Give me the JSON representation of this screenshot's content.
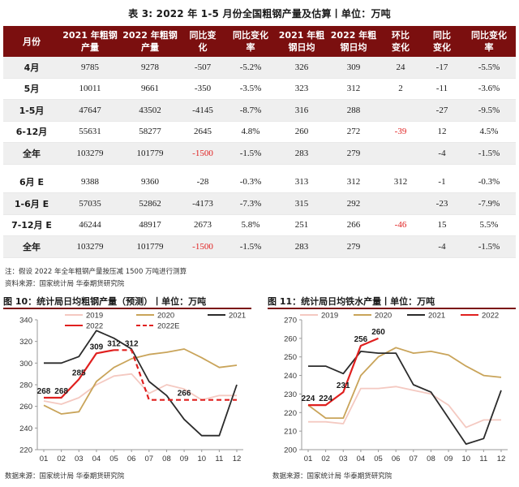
{
  "table": {
    "title": "表 3: 2022 年 1-5 月份全国粗钢产量及估算丨单位：万吨",
    "headers": [
      "月份",
      "2021 年粗钢\n产量",
      "2022 年粗钢\n产量",
      "同比变\n化",
      "同比变化\n率",
      "2021 年粗\n钢日均",
      "2022 年粗\n钢日均",
      "环比\n变化",
      "同比\n变化",
      "同比变化\n率"
    ],
    "rows": [
      {
        "cells": [
          "4月",
          "9785",
          "9278",
          "-507",
          "-5.2%",
          "326",
          "309",
          "24",
          "-17",
          "-5.5%"
        ],
        "shade": true,
        "red": []
      },
      {
        "cells": [
          "5月",
          "10011",
          "9661",
          "-350",
          "-3.5%",
          "323",
          "312",
          "2",
          "-11",
          "-3.6%"
        ],
        "shade": false,
        "red": []
      },
      {
        "cells": [
          "1-5月",
          "47647",
          "43502",
          "-4145",
          "-8.7%",
          "316",
          "288",
          "",
          "-27",
          "-9.5%"
        ],
        "shade": true,
        "red": []
      },
      {
        "cells": [
          "6-12月",
          "55631",
          "58277",
          "2645",
          "4.8%",
          "260",
          "272",
          "-39",
          "12",
          "4.5%"
        ],
        "shade": false,
        "red": [
          7
        ]
      },
      {
        "cells": [
          "全年",
          "103279",
          "101779",
          "-1500",
          "-1.5%",
          "283",
          "279",
          "",
          "-4",
          "-1.5%"
        ],
        "shade": true,
        "red": [
          3
        ]
      },
      {
        "cells": [
          "6月 E",
          "9388",
          "9360",
          "-28",
          "-0.3%",
          "313",
          "312",
          "312",
          "-1",
          "-0.3%"
        ],
        "shade": false,
        "red": [],
        "gap_before": true
      },
      {
        "cells": [
          "1-6月 E",
          "57035",
          "52862",
          "-4173",
          "-7.3%",
          "315",
          "292",
          "",
          "-23",
          "-7.9%"
        ],
        "shade": true,
        "red": []
      },
      {
        "cells": [
          "7-12月 E",
          "46244",
          "48917",
          "2673",
          "5.8%",
          "251",
          "266",
          "-46",
          "15",
          "5.5%"
        ],
        "shade": false,
        "red": [
          7
        ]
      },
      {
        "cells": [
          "全年",
          "103279",
          "101779",
          "-1500",
          "-1.5%",
          "283",
          "279",
          "",
          "-4",
          "-1.5%"
        ],
        "shade": true,
        "red": [
          3
        ]
      }
    ],
    "note": "注：假设 2022 年全年粗钢产量按压减 1500 万吨进行测算",
    "source": "资料来源：国家统计局  华泰期货研究院"
  },
  "chart_data": [
    {
      "type": "line",
      "title": "图 10：统计局日均粗钢产量（预测）丨单位：万吨",
      "source": "数据来源：国家统计局  华泰期货研究院",
      "x": [
        "01",
        "02",
        "03",
        "04",
        "05",
        "06",
        "07",
        "08",
        "09",
        "10",
        "11",
        "12"
      ],
      "ylim": [
        220,
        340
      ],
      "yticks": [
        220,
        240,
        260,
        280,
        300,
        320,
        340
      ],
      "legend_position": "top",
      "series": [
        {
          "name": "2019",
          "color": "#f4c9c1",
          "dash": false,
          "values": [
            265,
            262,
            268,
            280,
            288,
            290,
            272,
            280,
            276,
            266,
            270,
            270
          ]
        },
        {
          "name": "2020",
          "color": "#c9a45a",
          "dash": false,
          "values": [
            261,
            253,
            255,
            283,
            296,
            304,
            308,
            310,
            313,
            305,
            296,
            298
          ]
        },
        {
          "name": "2021",
          "color": "#2b2b2b",
          "dash": false,
          "values": [
            300,
            300,
            306,
            330,
            323,
            313,
            283,
            270,
            248,
            233,
            233,
            280
          ]
        },
        {
          "name": "2022",
          "color": "#e0201f",
          "dash": false,
          "values": [
            268,
            268,
            285,
            309,
            312,
            null,
            null,
            null,
            null,
            null,
            null,
            null
          ]
        },
        {
          "name": "2022E",
          "color": "#e0201f",
          "dash": true,
          "values": [
            null,
            null,
            null,
            null,
            312,
            312,
            266,
            266,
            266,
            266,
            266,
            266
          ]
        }
      ],
      "data_labels": [
        {
          "text": "268",
          "x": "01",
          "y": 268,
          "color": "#1a1a1a"
        },
        {
          "text": "268",
          "x": "02",
          "y": 268,
          "color": "#1a1a1a"
        },
        {
          "text": "285",
          "x": "03",
          "y": 285,
          "color": "#1a1a1a"
        },
        {
          "text": "309",
          "x": "04",
          "y": 309,
          "color": "#1a1a1a"
        },
        {
          "text": "312",
          "x": "05",
          "y": 312,
          "color": "#1a1a1a"
        },
        {
          "text": "312",
          "x": "06",
          "y": 312,
          "color": "#1a1a1a"
        },
        {
          "text": "266",
          "x": "09",
          "y": 266,
          "color": "#1a1a1a"
        }
      ]
    },
    {
      "type": "line",
      "title": "图 11：统计局日均铁水产量丨单位：万吨",
      "source": "数据来源：国家统计局  华泰期货研究院",
      "x": [
        "01",
        "02",
        "03",
        "04",
        "05",
        "06",
        "07",
        "08",
        "09",
        "10",
        "11",
        "12"
      ],
      "ylim": [
        200,
        270
      ],
      "yticks": [
        200,
        210,
        220,
        230,
        240,
        250,
        260,
        270
      ],
      "legend_position": "top",
      "series": [
        {
          "name": "2019",
          "color": "#f4c9c1",
          "dash": false,
          "values": [
            215,
            215,
            214,
            233,
            233,
            234,
            232,
            230,
            224,
            212,
            216,
            216
          ]
        },
        {
          "name": "2020",
          "color": "#c9a45a",
          "dash": false,
          "values": [
            224,
            217,
            217,
            240,
            250,
            255,
            252,
            253,
            251,
            245,
            240,
            239
          ]
        },
        {
          "name": "2021",
          "color": "#2b2b2b",
          "dash": false,
          "values": [
            245,
            245,
            241,
            253,
            252,
            252,
            235,
            231,
            217,
            203,
            206,
            232
          ]
        },
        {
          "name": "2022",
          "color": "#e0201f",
          "dash": false,
          "values": [
            224,
            224,
            231,
            256,
            260,
            null,
            null,
            null,
            null,
            null,
            null,
            null
          ]
        }
      ],
      "data_labels": [
        {
          "text": "224",
          "x": "01",
          "y": 224,
          "color": "#1a1a1a"
        },
        {
          "text": "224",
          "x": "02",
          "y": 224,
          "color": "#1a1a1a"
        },
        {
          "text": "231",
          "x": "03",
          "y": 231,
          "color": "#1a1a1a"
        },
        {
          "text": "256",
          "x": "04",
          "y": 256,
          "color": "#1a1a1a"
        },
        {
          "text": "260",
          "x": "05",
          "y": 260,
          "color": "#1a1a1a"
        }
      ]
    }
  ]
}
